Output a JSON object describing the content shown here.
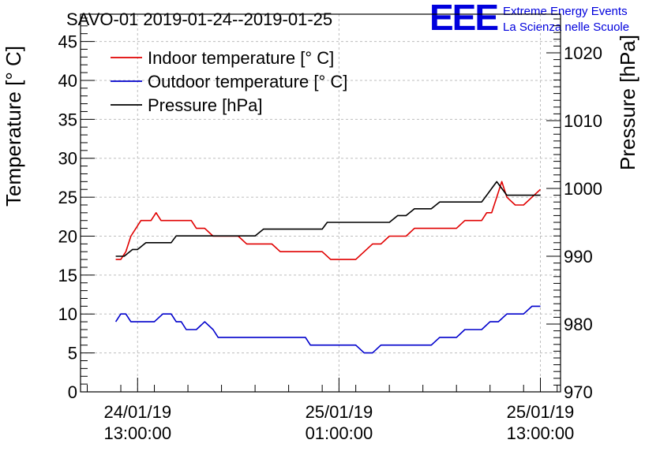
{
  "header": {
    "title": "SAVO-01 2019-01-24--2019-01-25",
    "logo_mark": "EEE",
    "logo_line1": "Extreme Energy Events",
    "logo_line2": "La Scienza nelle Scuole"
  },
  "colors": {
    "indoor": "#e00000",
    "outdoor": "#0000cc",
    "pressure": "#000000",
    "logo": "#0000dd"
  },
  "chart_data": {
    "type": "line",
    "xlabel": "",
    "ylabel": "Temperature [° C]",
    "y2label": "Pressure [hPa]",
    "grid": true,
    "legend_position": "top-left",
    "x_unit": "hours",
    "xlim": [
      9.6,
      38.2
    ],
    "ylim": [
      0,
      48.5
    ],
    "y2lim": [
      970,
      1025.7
    ],
    "x_ticks": [
      {
        "x": 13,
        "line1": "24/01/19",
        "line2": "13:00:00"
      },
      {
        "x": 25,
        "line1": "25/01/19",
        "line2": "01:00:00"
      },
      {
        "x": 37,
        "line1": "25/01/19",
        "line2": "13:00:00"
      }
    ],
    "y_ticks": [
      0,
      5,
      10,
      15,
      20,
      25,
      30,
      35,
      40,
      45
    ],
    "y2_ticks": [
      970,
      980,
      990,
      1000,
      1010,
      1020
    ],
    "series": [
      {
        "name": "Indoor temperature [° C]",
        "axis": "left",
        "x": [
          11.7,
          12.0,
          12.3,
          12.6,
          12.9,
          13.2,
          13.5,
          13.8,
          14.1,
          14.4,
          14.7,
          15.0,
          15.3,
          15.6,
          15.9,
          16.2,
          16.5,
          17.0,
          17.5,
          18.0,
          18.5,
          19.0,
          19.5,
          20.0,
          20.5,
          21.0,
          21.5,
          22.0,
          22.5,
          23.0,
          23.5,
          24.0,
          24.5,
          25.0,
          25.5,
          26.0,
          26.5,
          27.0,
          27.5,
          28.0,
          28.5,
          29.0,
          29.5,
          30.0,
          30.5,
          31.0,
          31.5,
          32.0,
          32.5,
          33.0,
          33.5,
          33.8,
          34.1,
          34.4,
          34.7,
          35.0,
          35.5,
          36.0,
          36.5,
          37.0
        ],
        "values": [
          17,
          17,
          18,
          20,
          21,
          22,
          22,
          22,
          23,
          22,
          22,
          22,
          22,
          22,
          22,
          22,
          21,
          21,
          20,
          20,
          20,
          20,
          19,
          19,
          19,
          19,
          18,
          18,
          18,
          18,
          18,
          18,
          17,
          17,
          17,
          17,
          18,
          19,
          19,
          20,
          20,
          20,
          21,
          21,
          21,
          21,
          21,
          21,
          22,
          22,
          22,
          23,
          23,
          25,
          27,
          25,
          24,
          24,
          25,
          26
        ]
      },
      {
        "name": "Outdoor temperature [° C]",
        "axis": "left",
        "x": [
          11.7,
          12.0,
          12.3,
          12.6,
          12.9,
          13.2,
          13.5,
          14.0,
          14.5,
          15.0,
          15.3,
          15.6,
          15.9,
          16.2,
          16.5,
          17.0,
          17.5,
          17.8,
          18.1,
          18.4,
          19.0,
          20.0,
          21.0,
          22.0,
          23.0,
          23.3,
          23.6,
          24.0,
          25.0,
          26.0,
          26.5,
          27.0,
          27.5,
          28.0,
          28.5,
          29.0,
          29.5,
          30.0,
          30.5,
          31.0,
          31.5,
          32.0,
          32.5,
          33.0,
          33.5,
          34.0,
          34.5,
          35.0,
          35.5,
          36.0,
          36.5,
          37.0
        ],
        "values": [
          9,
          10,
          10,
          9,
          9,
          9,
          9,
          9,
          10,
          10,
          9,
          9,
          8,
          8,
          8,
          9,
          8,
          7,
          7,
          7,
          7,
          7,
          7,
          7,
          7,
          6,
          6,
          6,
          6,
          6,
          5,
          5,
          6,
          6,
          6,
          6,
          6,
          6,
          6,
          7,
          7,
          7,
          8,
          8,
          8,
          9,
          9,
          10,
          10,
          10,
          11,
          11
        ]
      },
      {
        "name": "Pressure [hPa]",
        "axis": "right",
        "x": [
          11.7,
          12.2,
          12.7,
          13.0,
          13.5,
          14.0,
          14.5,
          15.0,
          15.3,
          15.6,
          16.0,
          17.0,
          18.0,
          19.0,
          20.0,
          20.5,
          21.0,
          22.0,
          23.0,
          24.0,
          24.3,
          25.0,
          26.0,
          27.0,
          28.0,
          28.5,
          29.0,
          29.5,
          30.0,
          30.5,
          31.0,
          31.5,
          32.0,
          32.5,
          33.0,
          33.5,
          33.8,
          34.1,
          34.4,
          34.7,
          35.0,
          35.5,
          36.0,
          37.0
        ],
        "values": [
          990,
          990,
          991,
          991,
          992,
          992,
          992,
          992,
          993,
          993,
          993,
          993,
          993,
          993,
          993,
          994,
          994,
          994,
          994,
          994,
          995,
          995,
          995,
          995,
          995,
          996,
          996,
          997,
          997,
          997,
          998,
          998,
          998,
          998,
          998,
          998,
          999,
          1000,
          1001,
          1000,
          999,
          999,
          999,
          999
        ]
      }
    ]
  }
}
